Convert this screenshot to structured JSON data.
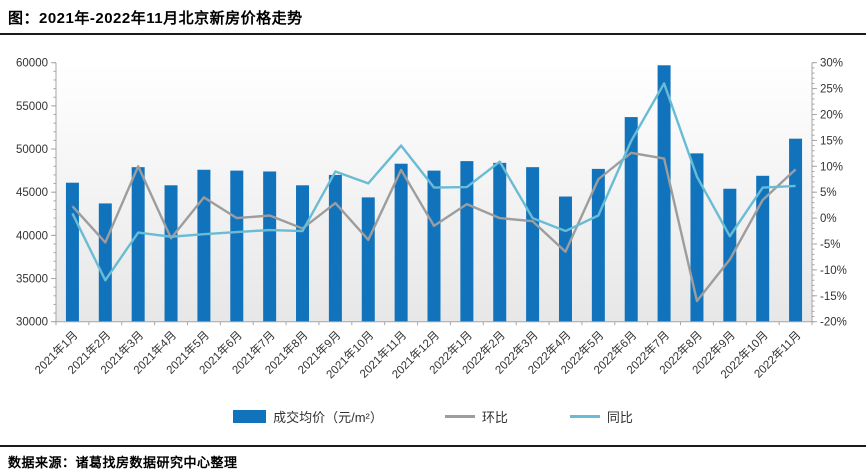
{
  "header": {
    "title": "图：2021年-2022年11月北京新房价格走势"
  },
  "footer": {
    "source": "数据来源：诸葛找房数据研究中心整理"
  },
  "legend": {
    "price_label": "成交均价（元/m²）",
    "mom_label": "环比",
    "yoy_label": "同比"
  },
  "colors": {
    "bar": "#1273bd",
    "mom_line": "#9d9d9d",
    "yoy_line": "#69bcd4",
    "axis": "#a6a6a6",
    "tick_text": "#333333"
  },
  "chart_data": {
    "type": "bar+line",
    "title": "图：2021年-2022年11月北京新房价格走势",
    "categories": [
      "2021年1月",
      "2021年2月",
      "2021年3月",
      "2021年4月",
      "2021年5月",
      "2021年6月",
      "2021年7月",
      "2021年8月",
      "2021年9月",
      "2021年10月",
      "2021年11月",
      "2021年12月",
      "2022年1月",
      "2022年2月",
      "2022年3月",
      "2022年4月",
      "2022年5月",
      "2022年6月",
      "2022年7月",
      "2022年8月",
      "2022年9月",
      "2022年10月",
      "2022年11月"
    ],
    "series": [
      {
        "name": "成交均价（元/m²）",
        "type": "bar",
        "axis": "left",
        "values": [
          46100,
          43700,
          47900,
          45800,
          47600,
          47500,
          47400,
          45800,
          47000,
          44400,
          48300,
          47500,
          48600,
          48400,
          47900,
          44500,
          47700,
          53700,
          59700,
          49500,
          45400,
          46900,
          51200
        ]
      },
      {
        "name": "环比",
        "type": "line",
        "axis": "right",
        "values": [
          2.3,
          -4.7,
          10.0,
          -3.9,
          4.0,
          0.0,
          0.5,
          -2.0,
          2.9,
          -4.2,
          9.3,
          -1.5,
          2.7,
          0.0,
          -0.6,
          -6.5,
          7.5,
          12.6,
          11.5,
          -16.0,
          -8.0,
          3.5,
          9.4
        ]
      },
      {
        "name": "同比",
        "type": "line",
        "axis": "right",
        "values": [
          0.9,
          -12.0,
          -2.8,
          -3.6,
          -3.1,
          -2.7,
          -2.3,
          -2.5,
          9.0,
          6.7,
          14.0,
          5.9,
          6.0,
          10.9,
          0.0,
          -2.5,
          0.5,
          14.9,
          26.0,
          8.0,
          -3.5,
          5.9,
          6.2
        ]
      }
    ],
    "price_axis": {
      "min": 30000,
      "max": 60000,
      "step": 5000,
      "minor_step": 1000
    },
    "pct_axis": {
      "min": -20,
      "max": 30,
      "step": 5,
      "minor_step": 1,
      "suffix": "%"
    },
    "grid": "off",
    "legend_position": "bottom"
  }
}
